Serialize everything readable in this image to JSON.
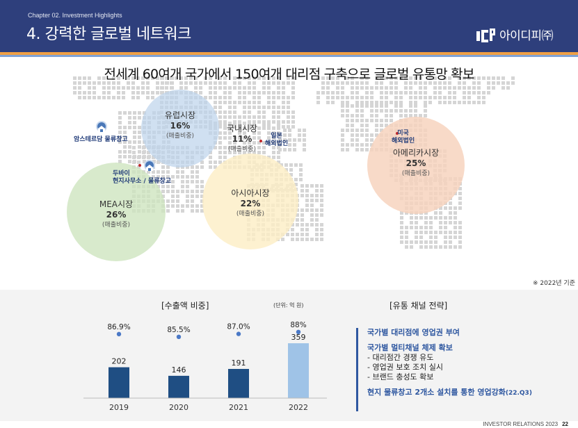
{
  "header": {
    "chapter": "Chapter 02. Investment Highlights",
    "title": "4. 강력한 글로벌 네트워크",
    "logo_text": "아이디피㈜"
  },
  "headline": "전세계 60여개 국가에서 150여개 대리점 구축으로 글로벌 유통망 확보",
  "markets": {
    "europe": {
      "name": "유럽시장",
      "pct": "16%",
      "sub": "(매출비중)"
    },
    "domestic": {
      "name": "국내시장",
      "pct": "11%",
      "sub": "(매출비중)"
    },
    "mea": {
      "name": "MEA시장",
      "pct": "26%",
      "sub": "(매출비중)"
    },
    "asia": {
      "name": "아시아시장",
      "pct": "22%",
      "sub": "(매출비중)"
    },
    "america": {
      "name": "아메리카시장",
      "pct": "25%",
      "sub": "(매출비중)"
    }
  },
  "locations": {
    "amsterdam": "암스테르담 물류창고",
    "dubai_line1": "두바이",
    "dubai_line2": "현지사무소 / 물류창고",
    "japan_line1": "일본",
    "japan_line2": "해외법인",
    "usa_line1": "미국",
    "usa_line2": "해외법인"
  },
  "basis_note": "※ 2022년 기준",
  "export_chart": {
    "title": "[수출액 비중]",
    "unit": "(단위: 억 원)"
  },
  "chart_data": {
    "type": "bar",
    "title": "[수출액 비중]",
    "categories": [
      "2019",
      "2020",
      "2021",
      "2022"
    ],
    "series": [
      {
        "values": [
          202,
          146,
          191,
          359
        ]
      }
    ],
    "export_ratio_labels": [
      "86.9%",
      "85.5%",
      "87.0%",
      "88%"
    ],
    "export_ratio": [
      86.9,
      85.5,
      87.0,
      88
    ],
    "bar_colors": [
      "#1f4e83",
      "#1f4e83",
      "#1f4e83",
      "#9fc3e7"
    ],
    "ylim": [
      0,
      400
    ]
  },
  "strategy": {
    "title": "[유통 채널 전략]",
    "point1": "국가별 대리점에 영업권 부여",
    "point2": "국가별 멀티채널 체제 확보",
    "bullets": [
      "- 대리점간 경쟁 유도",
      "- 영업권 보호 조치 실시",
      "- 브랜드 충성도 확보"
    ],
    "point3": "현지 물류창고 2개소 설치를 통한 영업강화",
    "point3_note": "(22.Q3)"
  },
  "footer": {
    "label": "INVESTOR RELATIONS 2023",
    "page": "22"
  }
}
